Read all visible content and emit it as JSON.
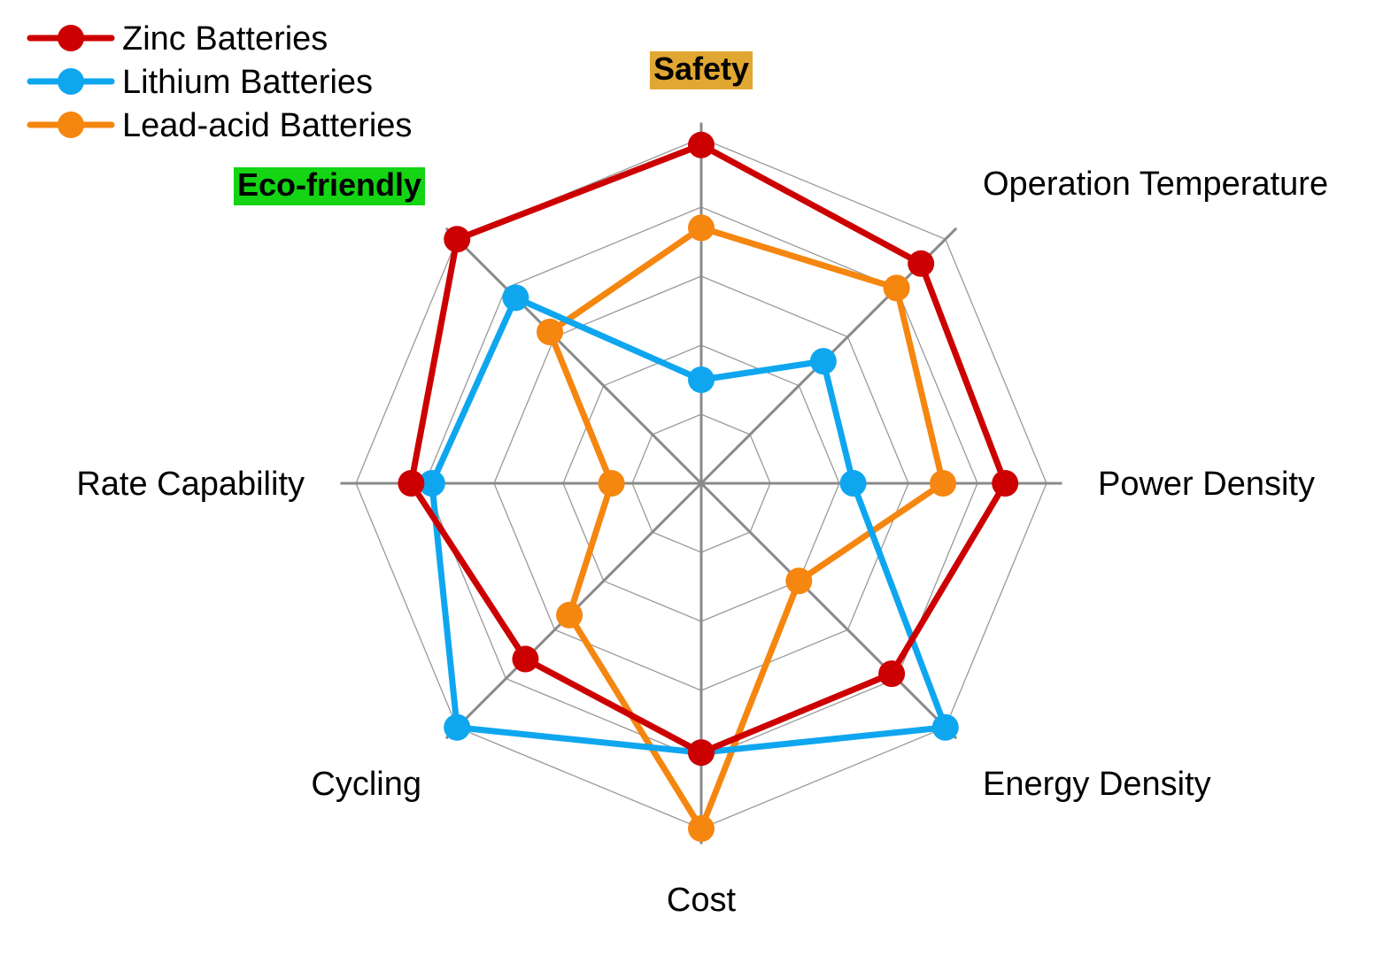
{
  "chart_data": {
    "type": "radar",
    "axes": [
      "Safety",
      "Operation Temperature",
      "Power Density",
      "Energy Density",
      "Cost",
      "Cycling",
      "Rate Capability",
      "Eco-friendly"
    ],
    "highlighted_axes": [
      {
        "label": "Safety",
        "color": "#E0A733"
      },
      {
        "label": "Eco-friendly",
        "color": "#14D414"
      }
    ],
    "scale": {
      "min": 0,
      "max": 5,
      "rings": 5
    },
    "series": [
      {
        "name": "Zinc Batteries",
        "color": "#CC0000",
        "values": [
          4.9,
          4.5,
          4.4,
          3.9,
          3.9,
          3.6,
          4.2,
          5.0
        ]
      },
      {
        "name": "Lithium Batteries",
        "color": "#0FA6F0",
        "values": [
          1.5,
          2.5,
          2.2,
          5.0,
          3.9,
          5.0,
          3.9,
          3.8
        ]
      },
      {
        "name": "Lead-acid Batteries",
        "color": "#F5860F",
        "values": [
          3.7,
          4.0,
          3.5,
          2.0,
          5.0,
          2.7,
          1.3,
          3.1
        ]
      }
    ],
    "legend_position": "top-left",
    "grid": true
  }
}
